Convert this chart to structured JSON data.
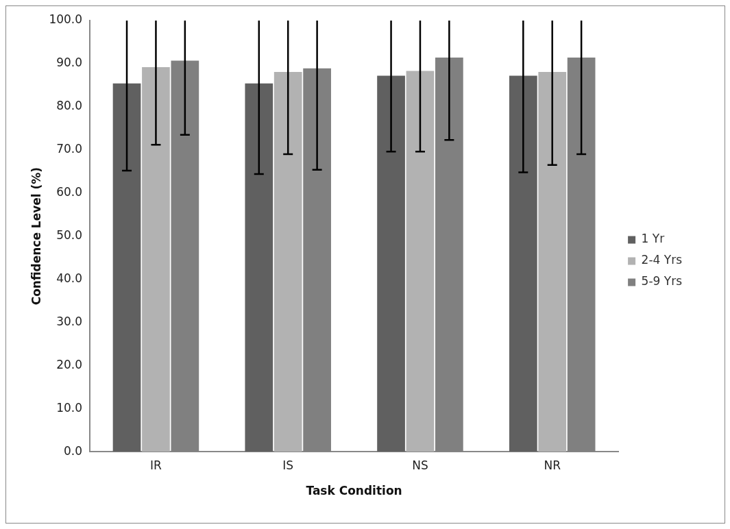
{
  "chart_data": {
    "type": "bar",
    "xlabel": "Task Condition",
    "ylabel": "Confidence Level (%)",
    "categories": [
      "IR",
      "IS",
      "NS",
      "NR"
    ],
    "series": [
      {
        "name": "1 Yr",
        "color": "#606060",
        "values": [
          85.4,
          85.4,
          87.2,
          87.2
        ],
        "errors": [
          [
            65.2,
            100
          ],
          [
            64.4,
            100
          ],
          [
            69.6,
            100
          ],
          [
            64.8,
            100
          ]
        ]
      },
      {
        "name": "2-4 Yrs",
        "color": "#b2b2b2",
        "values": [
          89.2,
          88.1,
          88.3,
          88.1
        ],
        "errors": [
          [
            71.2,
            100
          ],
          [
            69.0,
            100
          ],
          [
            69.6,
            100
          ],
          [
            66.5,
            100
          ]
        ]
      },
      {
        "name": "5-9 Yrs",
        "color": "#808080",
        "values": [
          90.7,
          88.9,
          91.4,
          91.4
        ],
        "errors": [
          [
            73.5,
            100
          ],
          [
            65.4,
            100
          ],
          [
            72.3,
            100
          ],
          [
            69.0,
            100
          ]
        ]
      }
    ],
    "ylim": [
      0,
      100
    ],
    "yticks": [
      {
        "value": 0,
        "label": "0.0"
      },
      {
        "value": 10,
        "label": "10.0"
      },
      {
        "value": 20,
        "label": "20.0"
      },
      {
        "value": 30,
        "label": "30.0"
      },
      {
        "value": 40,
        "label": "40.0"
      },
      {
        "value": 50,
        "label": "50.0"
      },
      {
        "value": 60,
        "label": "60.0"
      },
      {
        "value": 70,
        "label": "70.0"
      },
      {
        "value": 80,
        "label": "80.0"
      },
      {
        "value": 90,
        "label": "90.0"
      },
      {
        "value": 100,
        "label": "100.0"
      }
    ],
    "grid": false,
    "legend": "right"
  }
}
